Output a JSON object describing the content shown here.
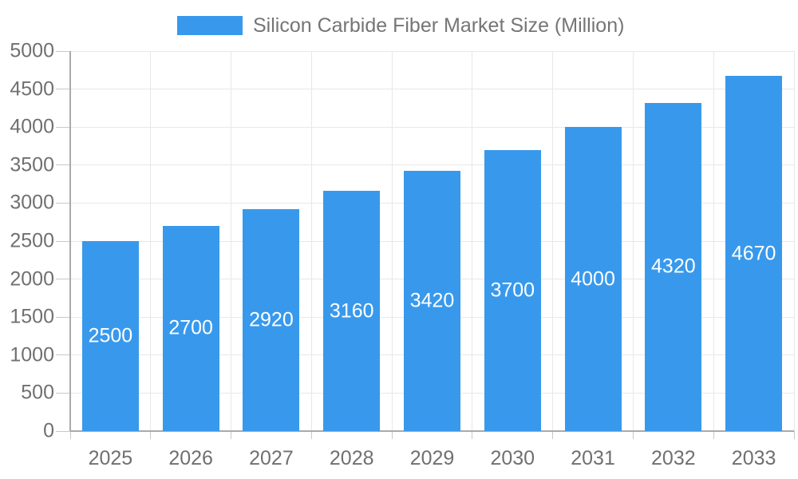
{
  "legend": {
    "label": "Silicon Carbide Fiber Market Size (Million)"
  },
  "colors": {
    "bar": "#3899EC",
    "bar_label": "#FFFFFF",
    "axis_line": "#AAAAAA",
    "grid_line": "#E8E8E8",
    "tick_line": "#C8C8C8",
    "axis_text": "#707070",
    "legend_text": "#757575",
    "background": "#FFFFFF"
  },
  "chart_data": {
    "type": "bar",
    "title": "Silicon Carbide Fiber Market Size (Million)",
    "categories": [
      "2025",
      "2026",
      "2027",
      "2028",
      "2029",
      "2030",
      "2031",
      "2032",
      "2033"
    ],
    "values": [
      2500,
      2700,
      2920,
      3160,
      3420,
      3700,
      4000,
      4320,
      4670
    ],
    "xlabel": "",
    "ylabel": "",
    "ylim": [
      0,
      5000
    ],
    "y_ticks": [
      0,
      500,
      1000,
      1500,
      2000,
      2500,
      3000,
      3500,
      4000,
      4500,
      5000
    ],
    "grid": true,
    "legend_position": "top",
    "bar_labels_visible": true,
    "bar_label_position": "center"
  }
}
